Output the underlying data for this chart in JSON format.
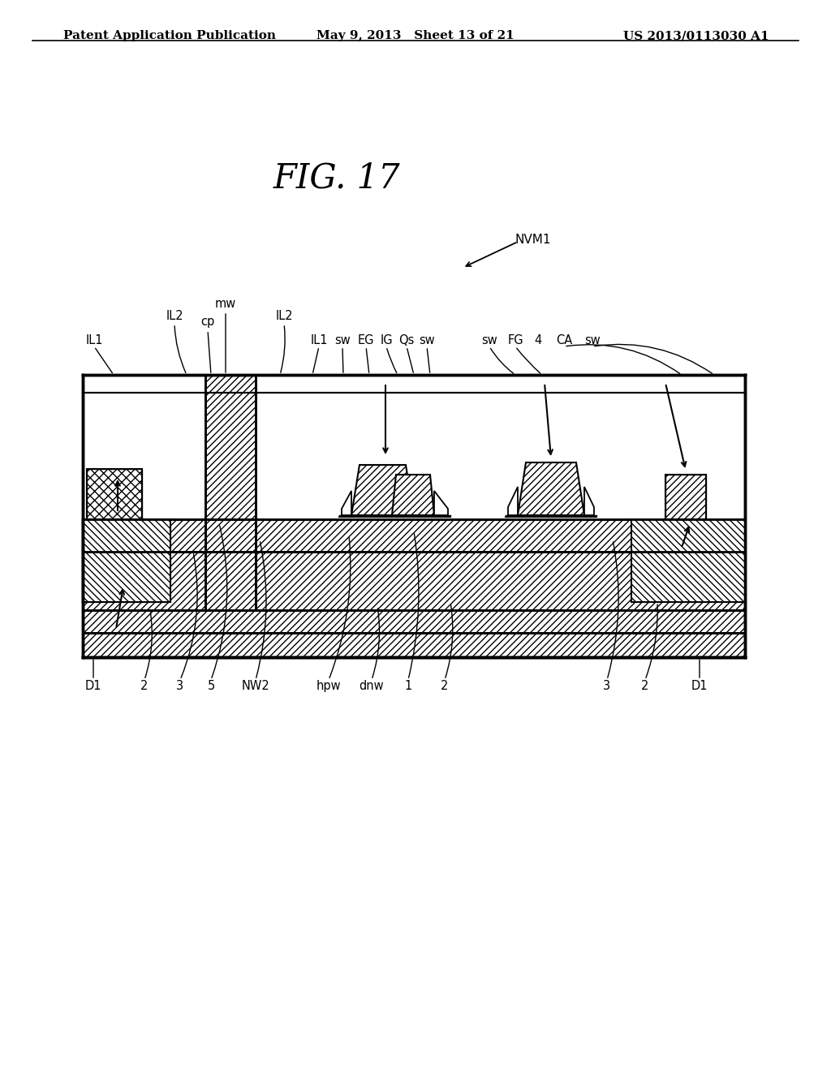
{
  "header_left": "Patent Application Publication",
  "header_mid": "May 9, 2013   Sheet 13 of 21",
  "header_right": "US 2013/0113030 A1",
  "fig_label": "FIG. 17",
  "nvm_label": "NVM1",
  "bg_color": "#ffffff"
}
